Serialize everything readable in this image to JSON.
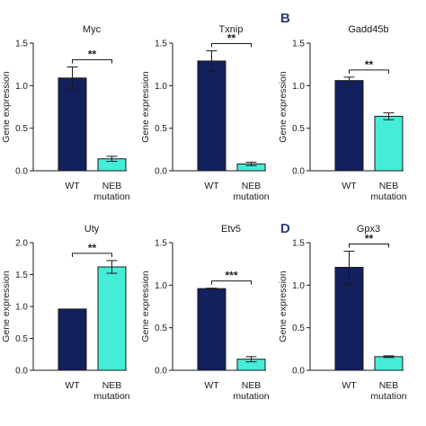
{
  "panel_labels": {
    "B": "B",
    "D": "D"
  },
  "colors": {
    "wt": "#13205e",
    "neb": "#45ecd8",
    "axis": "#1a1a1a",
    "panel_label": "#2a3f78"
  },
  "chart_data": [
    {
      "type": "bar",
      "title": "Myc",
      "ylabel": "Gene expression",
      "categories": [
        "WT",
        "NEB mutation"
      ],
      "values": [
        1.09,
        0.14
      ],
      "errors": [
        0.13,
        0.03
      ],
      "ylim": [
        0,
        1.5
      ],
      "yticks": [
        "0.0",
        "0.5",
        "1.0",
        "1.5"
      ],
      "significance": "**",
      "grid": false
    },
    {
      "type": "bar",
      "title": "Txnip",
      "ylabel": "Gene expression",
      "categories": [
        "WT",
        "NEB mutation"
      ],
      "values": [
        1.29,
        0.08
      ],
      "errors": [
        0.12,
        0.02
      ],
      "ylim": [
        0,
        1.5
      ],
      "yticks": [
        "0.0",
        "0.5",
        "1.0",
        "1.5"
      ],
      "significance": "**",
      "grid": false
    },
    {
      "type": "bar",
      "title": "Gadd45b",
      "ylabel": "Gene expression",
      "categories": [
        "WT",
        "NEB mutation"
      ],
      "values": [
        1.06,
        0.64
      ],
      "errors": [
        0.04,
        0.04
      ],
      "ylim": [
        0,
        1.5
      ],
      "yticks": [
        "0.0",
        "0.5",
        "1.0",
        "1.5"
      ],
      "significance": "**",
      "grid": false
    },
    {
      "type": "bar",
      "title": "Uty",
      "ylabel": "Gene expression",
      "categories": [
        "WT",
        "NEB mutation"
      ],
      "values": [
        0.96,
        1.62
      ],
      "errors": [
        0.0,
        0.1
      ],
      "ylim": [
        0,
        2.0
      ],
      "yticks": [
        "0.0",
        "0.5",
        "1.0",
        "1.5",
        "2.0"
      ],
      "significance": "**",
      "grid": false
    },
    {
      "type": "bar",
      "title": "Etv5",
      "ylabel": "Gene expression",
      "categories": [
        "WT",
        "NEB mutation"
      ],
      "values": [
        0.96,
        0.13
      ],
      "errors": [
        0.005,
        0.03
      ],
      "ylim": [
        0,
        1.5
      ],
      "yticks": [
        "0.0",
        "0.5",
        "1.0",
        "1.5"
      ],
      "significance": "***",
      "grid": false
    },
    {
      "type": "bar",
      "title": "Gpx3",
      "ylabel": "Gene expression",
      "categories": [
        "WT",
        "NEB mutation"
      ],
      "values": [
        1.21,
        0.16
      ],
      "errors": [
        0.19,
        0.01
      ],
      "ylim": [
        0,
        1.5
      ],
      "yticks": [
        "0.0",
        "0.5",
        "1.0",
        "1.5"
      ],
      "significance": "**",
      "grid": false
    }
  ]
}
